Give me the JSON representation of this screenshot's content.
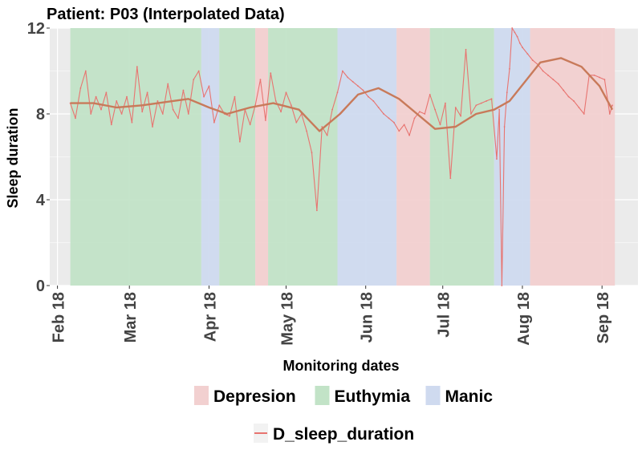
{
  "chart_data": {
    "type": "line",
    "title": "Patient: P03 (Interpolated Data)",
    "xlabel": "Monitoring dates",
    "ylabel": "Sleep duration",
    "ylim": [
      0,
      12
    ],
    "xlim": [
      "2018-02-12",
      "2018-09-29"
    ],
    "grid": true,
    "legend_placement": "bottom",
    "y_ticks": [
      0,
      4,
      8,
      12
    ],
    "y_tick_labels": [
      "0",
      "4",
      "8",
      "12"
    ],
    "x_ticks": [
      "2018-02-15",
      "2018-03-15",
      "2018-04-15",
      "2018-05-15",
      "2018-06-15",
      "2018-07-15",
      "2018-08-15",
      "2018-09-15"
    ],
    "x_tick_labels": [
      "Feb 18",
      "Mar 18",
      "Apr 18",
      "May 18",
      "Jun 18",
      "Jul 18",
      "Aug 18",
      "Sep 18"
    ],
    "states": [
      {
        "label": "Depresion",
        "color": "#f2d0d0"
      },
      {
        "label": "Euthymia",
        "color": "#c2e3c7"
      },
      {
        "label": "Manic",
        "color": "#cfdaef"
      }
    ],
    "periods": [
      {
        "state": "Euthymia",
        "start": "2018-02-20",
        "end": "2018-04-12"
      },
      {
        "state": "Manic",
        "start": "2018-04-12",
        "end": "2018-04-19"
      },
      {
        "state": "Euthymia",
        "start": "2018-04-19",
        "end": "2018-05-03"
      },
      {
        "state": "Depresion",
        "start": "2018-05-03",
        "end": "2018-05-08"
      },
      {
        "state": "Euthymia",
        "start": "2018-05-08",
        "end": "2018-06-04"
      },
      {
        "state": "Manic",
        "start": "2018-06-04",
        "end": "2018-06-27"
      },
      {
        "state": "Depresion",
        "start": "2018-06-27",
        "end": "2018-07-10"
      },
      {
        "state": "Euthymia",
        "start": "2018-07-10",
        "end": "2018-08-04"
      },
      {
        "state": "Manic",
        "start": "2018-08-04",
        "end": "2018-08-18"
      },
      {
        "state": "Depresion",
        "start": "2018-08-18",
        "end": "2018-09-20"
      }
    ],
    "series": [
      {
        "name": "D_sleep_duration",
        "color": "#e87470",
        "x": [
          "2018-02-20",
          "2018-02-22",
          "2018-02-24",
          "2018-02-26",
          "2018-02-28",
          "2018-03-02",
          "2018-03-04",
          "2018-03-06",
          "2018-03-08",
          "2018-03-10",
          "2018-03-12",
          "2018-03-14",
          "2018-03-16",
          "2018-03-18",
          "2018-03-20",
          "2018-03-22",
          "2018-03-24",
          "2018-03-26",
          "2018-03-28",
          "2018-03-30",
          "2018-04-01",
          "2018-04-03",
          "2018-04-05",
          "2018-04-07",
          "2018-04-09",
          "2018-04-11",
          "2018-04-13",
          "2018-04-15",
          "2018-04-17",
          "2018-04-19",
          "2018-04-21",
          "2018-04-23",
          "2018-04-25",
          "2018-04-27",
          "2018-04-29",
          "2018-05-01",
          "2018-05-03",
          "2018-05-05",
          "2018-05-07",
          "2018-05-09",
          "2018-05-11",
          "2018-05-13",
          "2018-05-15",
          "2018-05-17",
          "2018-05-19",
          "2018-05-21",
          "2018-05-23",
          "2018-05-25",
          "2018-05-27",
          "2018-05-29",
          "2018-05-31",
          "2018-06-02",
          "2018-06-04",
          "2018-06-06",
          "2018-06-08",
          "2018-06-10",
          "2018-06-12",
          "2018-06-14",
          "2018-06-16",
          "2018-06-18",
          "2018-06-20",
          "2018-06-22",
          "2018-06-24",
          "2018-06-26",
          "2018-06-28",
          "2018-06-30",
          "2018-07-02",
          "2018-07-04",
          "2018-07-06",
          "2018-07-08",
          "2018-07-10",
          "2018-07-12",
          "2018-07-14",
          "2018-07-16",
          "2018-07-18",
          "2018-07-20",
          "2018-07-22",
          "2018-07-24",
          "2018-07-26",
          "2018-07-28",
          "2018-07-30",
          "2018-08-01",
          "2018-08-03",
          "2018-08-05",
          "2018-08-06",
          "2018-08-07",
          "2018-08-08",
          "2018-08-09",
          "2018-08-10",
          "2018-08-11",
          "2018-08-12",
          "2018-08-13",
          "2018-08-14",
          "2018-08-15",
          "2018-08-17",
          "2018-08-19",
          "2018-08-21",
          "2018-08-23",
          "2018-08-25",
          "2018-08-27",
          "2018-08-29",
          "2018-08-31",
          "2018-09-02",
          "2018-09-04",
          "2018-09-06",
          "2018-09-08",
          "2018-09-10",
          "2018-09-12",
          "2018-09-14",
          "2018-09-16",
          "2018-09-18",
          "2018-09-19"
        ],
        "y": [
          8.5,
          7.8,
          9.2,
          10.0,
          8.0,
          8.8,
          8.2,
          9.0,
          7.5,
          8.6,
          8.0,
          8.8,
          7.6,
          10.2,
          8.1,
          9.0,
          7.4,
          8.6,
          8.0,
          9.4,
          8.2,
          7.8,
          9.1,
          8.0,
          9.6,
          10.0,
          8.8,
          9.3,
          7.6,
          8.4,
          8.0,
          7.9,
          8.8,
          6.7,
          8.2,
          7.5,
          8.4,
          9.6,
          7.7,
          9.9,
          8.6,
          8.1,
          9.0,
          8.4,
          7.6,
          8.0,
          7.2,
          6.2,
          3.5,
          7.4,
          7.0,
          8.2,
          9.0,
          10.0,
          9.7,
          9.5,
          9.3,
          9.1,
          8.8,
          8.6,
          8.3,
          8.0,
          7.8,
          7.6,
          7.2,
          7.5,
          7.0,
          7.8,
          8.1,
          8.0,
          8.9,
          8.2,
          7.5,
          8.5,
          5.0,
          8.3,
          7.9,
          11.0,
          8.0,
          8.4,
          8.5,
          8.6,
          8.7,
          5.9,
          8.2,
          0.0,
          7.4,
          9.0,
          10.1,
          12.0,
          11.8,
          11.6,
          11.3,
          11.1,
          10.8,
          10.5,
          10.3,
          10.0,
          9.8,
          9.6,
          9.4,
          9.1,
          8.8,
          8.6,
          8.3,
          8.0,
          9.8,
          9.8,
          9.7,
          9.6,
          8.0,
          8.4
        ]
      },
      {
        "name": "trend",
        "color": "#c87a5a",
        "x": [
          "2018-02-20",
          "2018-03-01",
          "2018-03-10",
          "2018-03-20",
          "2018-04-01",
          "2018-04-07",
          "2018-04-15",
          "2018-04-22",
          "2018-05-01",
          "2018-05-10",
          "2018-05-20",
          "2018-05-28",
          "2018-06-05",
          "2018-06-12",
          "2018-06-20",
          "2018-06-28",
          "2018-07-05",
          "2018-07-12",
          "2018-07-20",
          "2018-07-28",
          "2018-08-04",
          "2018-08-10",
          "2018-08-16",
          "2018-08-22",
          "2018-08-30",
          "2018-09-07",
          "2018-09-14",
          "2018-09-19"
        ],
        "y": [
          8.5,
          8.5,
          8.3,
          8.4,
          8.6,
          8.7,
          8.3,
          8.0,
          8.3,
          8.5,
          8.2,
          7.2,
          8.0,
          8.9,
          9.2,
          8.7,
          8.0,
          7.3,
          7.4,
          8.0,
          8.2,
          8.6,
          9.5,
          10.4,
          10.6,
          10.2,
          9.3,
          8.2
        ]
      }
    ]
  },
  "legend": {
    "fill_items": [
      "Depresion",
      "Euthymia",
      "Manic"
    ],
    "line_item": "D_sleep_duration"
  }
}
